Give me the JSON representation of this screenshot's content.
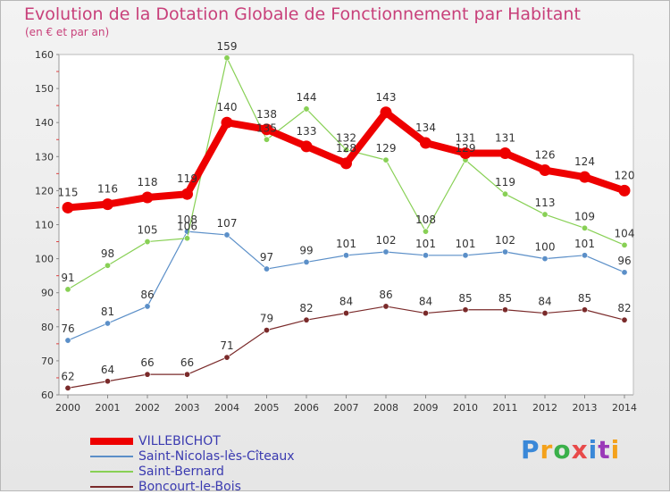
{
  "header": {
    "title": "Evolution de la Dotation Globale de Fonctionnement par Habitant",
    "subtitle": "(en € et par an)"
  },
  "logo": {
    "text": "Proxiti",
    "colors": [
      "#3a88d8",
      "#f4a21c",
      "#3ab04a",
      "#e84a4a",
      "#3a88d8",
      "#9a3ab8",
      "#f4a21c"
    ]
  },
  "chart_data": {
    "type": "line",
    "title": "Evolution de la Dotation Globale de Fonctionnement par Habitant",
    "subtitle": "(en € et par an)",
    "x": [
      "2000",
      "2001",
      "2002",
      "2003",
      "2004",
      "2005",
      "2006",
      "2007",
      "2008",
      "2009",
      "2010",
      "2011",
      "2012",
      "2013",
      "2014"
    ],
    "ylim": [
      60,
      160
    ],
    "yticks": [
      60,
      70,
      80,
      90,
      100,
      110,
      120,
      130,
      140,
      150,
      160
    ],
    "grid": false,
    "legend_position": "bottom-left",
    "series": [
      {
        "name": "VILLEBICHOT",
        "color": "#ee0000",
        "emphasis": true,
        "values": [
          115,
          116,
          118,
          119,
          140,
          138,
          133,
          128,
          143,
          134,
          131,
          131,
          126,
          124,
          120
        ]
      },
      {
        "name": "Saint-Nicolas-lès-Cîteaux",
        "color": "#5b8fc8",
        "emphasis": false,
        "values": [
          76,
          81,
          86,
          108,
          107,
          97,
          99,
          101,
          102,
          101,
          101,
          102,
          100,
          101,
          96
        ]
      },
      {
        "name": "Saint-Bernard",
        "color": "#88d055",
        "emphasis": false,
        "values": [
          91,
          98,
          105,
          106,
          159,
          135,
          144,
          132,
          129,
          108,
          129,
          119,
          113,
          109,
          104
        ]
      },
      {
        "name": "Boncourt-le-Bois",
        "color": "#7a2a2a",
        "emphasis": false,
        "values": [
          62,
          64,
          66,
          66,
          71,
          79,
          82,
          84,
          86,
          84,
          85,
          85,
          84,
          85,
          82
        ]
      }
    ]
  }
}
